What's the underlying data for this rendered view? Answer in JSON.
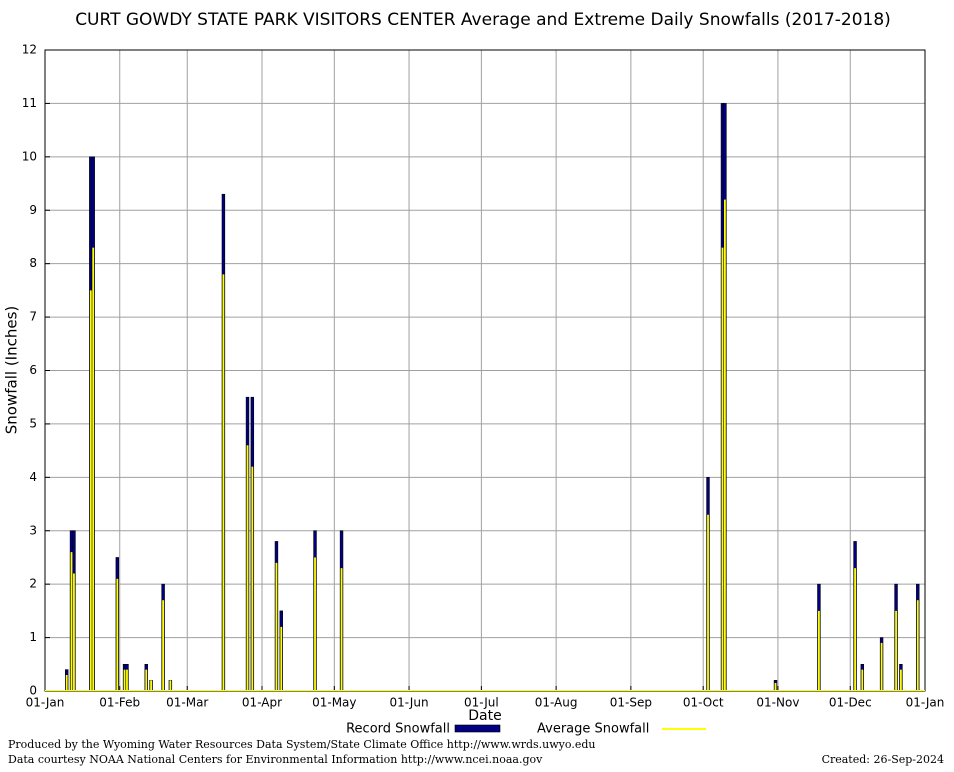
{
  "chart_data": {
    "type": "bar",
    "title": "CURT GOWDY STATE PARK VISITORS CENTER Average and Extreme Daily Snowfalls (2017-2018)",
    "x_label": "Date",
    "y_label": "Snowfall (Inches)",
    "x": [
      "10-Jan",
      "12-Jan",
      "13-Jan",
      "20-Jan",
      "21-Jan",
      "31-Jan",
      "03-Feb",
      "04-Feb",
      "12-Feb",
      "14-Feb",
      "19-Feb",
      "22-Feb",
      "16-Mar",
      "26-Mar",
      "28-Mar",
      "07-Apr",
      "09-Apr",
      "23-Apr",
      "04-May",
      "03-Oct",
      "09-Oct",
      "10-Oct",
      "31-Oct",
      "18-Nov",
      "03-Dec",
      "06-Dec",
      "14-Dec",
      "20-Dec",
      "22-Dec",
      "29-Dec"
    ],
    "series": [
      {
        "name": "Record Snowfall",
        "color": "#000080",
        "values": [
          0.4,
          3.0,
          3.0,
          10,
          10,
          2.5,
          0.5,
          0.5,
          0.5,
          0.2,
          2.0,
          0.2,
          9.3,
          5.5,
          5.5,
          2.8,
          1.5,
          3.0,
          3.0,
          4.0,
          11,
          11,
          0.2,
          2.0,
          2.8,
          0.5,
          1.0,
          2.0,
          0.5,
          2.0
        ]
      },
      {
        "name": "Average Snowfall",
        "color": "#ffff00",
        "values": [
          0.3,
          2.6,
          2.2,
          7.5,
          8.3,
          2.1,
          0.4,
          0.4,
          0.4,
          0.2,
          1.7,
          0.2,
          7.8,
          4.6,
          4.2,
          2.4,
          1.2,
          2.5,
          2.3,
          3.3,
          8.3,
          9.2,
          0.15,
          1.5,
          2.3,
          0.4,
          0.9,
          1.5,
          0.4,
          1.7
        ]
      }
    ],
    "xticks": [
      "01-Jan",
      "01-Feb",
      "01-Mar",
      "01-Apr",
      "01-May",
      "01-Jun",
      "01-Jul",
      "01-Aug",
      "01-Sep",
      "01-Oct",
      "01-Nov",
      "01-Dec",
      "01-Jan"
    ],
    "ylim": [
      0,
      12
    ],
    "yticks": [
      0,
      1,
      2,
      3,
      4,
      5,
      6,
      7,
      8,
      9,
      10,
      11,
      12
    ],
    "grid": true,
    "footer_left": [
      "Produced by the Wyoming Water Resources Data System/State Climate Office http://www.wrds.uwyo.edu",
      "Data courtesy NOAA National Centers for Environmental Information http://www.ncei.noaa.gov"
    ],
    "footer_right": "Created:  26-Sep-2024"
  }
}
